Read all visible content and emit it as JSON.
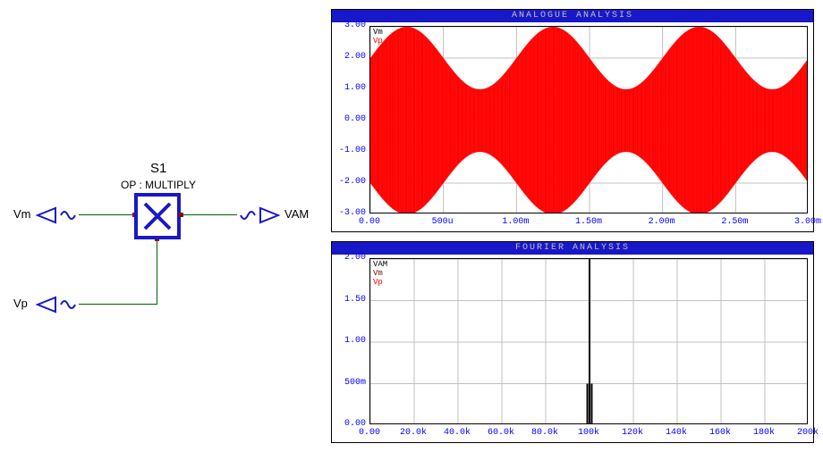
{
  "schematic": {
    "block_name": "S1",
    "block_op": "OP : MULTIPLY",
    "block_color": "#1818c8",
    "wire_color": "#006000",
    "pin_color": "#a00000",
    "ports": {
      "vm": "Vm",
      "vp": "Vp",
      "vam": "VAM"
    }
  },
  "chart1": {
    "title": "ANALOGUE ANALYSIS",
    "title_bg": "#1818c8",
    "title_fg": "#c0c0c0",
    "y_ticks": [
      "3.00",
      "2.00",
      "1.00",
      "0.00",
      "-1.00",
      "-2.00",
      "-3.00"
    ],
    "y_values": [
      3,
      2,
      1,
      0,
      -1,
      -2,
      -3
    ],
    "x_ticks": [
      "0.00",
      "500u",
      "1.00m",
      "1.50m",
      "2.00m",
      "2.50m",
      "3.00m"
    ],
    "x_values": [
      0,
      0.5,
      1.0,
      1.5,
      2.0,
      2.5,
      3.0
    ],
    "xlim": [
      0,
      3.0
    ],
    "ylim": [
      -3.0,
      3.0
    ],
    "grid_color": "#c0c0c0",
    "axis_color": "#0000ff",
    "legend": [
      {
        "label": "Vm",
        "color": "#000000"
      },
      {
        "label": "Vp",
        "color": "#ff0000"
      }
    ],
    "series_am": {
      "color": "#ff0000",
      "carrier_freq_hz": 100000,
      "modulating_freq_hz": 1000,
      "carrier_amplitude": 2.0,
      "modulation_index": 0.5,
      "duration_ms": 3.0
    },
    "series_vm_envelope": {
      "color": "#000000",
      "freq_hz": 1000,
      "amplitude": 1.0,
      "offset": 2.0
    }
  },
  "chart2": {
    "title": "FOURIER ANALYSIS",
    "title_bg": "#1818c8",
    "title_fg": "#c0c0c0",
    "y_ticks": [
      "2.00",
      "1.50",
      "1.00",
      "500m",
      "0.00"
    ],
    "y_values": [
      2.0,
      1.5,
      1.0,
      0.5,
      0.0
    ],
    "x_ticks": [
      "0.00",
      "20.0k",
      "40.0k",
      "60.0k",
      "80.0k",
      "100k",
      "120k",
      "140k",
      "160k",
      "180k",
      "200k"
    ],
    "x_values": [
      0,
      20,
      40,
      60,
      80,
      100,
      120,
      140,
      160,
      180,
      200
    ],
    "xlim": [
      0,
      200
    ],
    "ylim": [
      0,
      2.0
    ],
    "grid_color": "#c0c0c0",
    "axis_color": "#0000ff",
    "legend": [
      {
        "label": "VAM",
        "color": "#000000"
      },
      {
        "label": "Vm",
        "color": "#800000"
      },
      {
        "label": "Vp",
        "color": "#ff0000"
      }
    ],
    "peaks": [
      {
        "freq_k": 99,
        "mag": 0.5,
        "color": "#000000"
      },
      {
        "freq_k": 100,
        "mag": 2.0,
        "color": "#000000"
      },
      {
        "freq_k": 101,
        "mag": 0.5,
        "color": "#000000"
      }
    ]
  }
}
